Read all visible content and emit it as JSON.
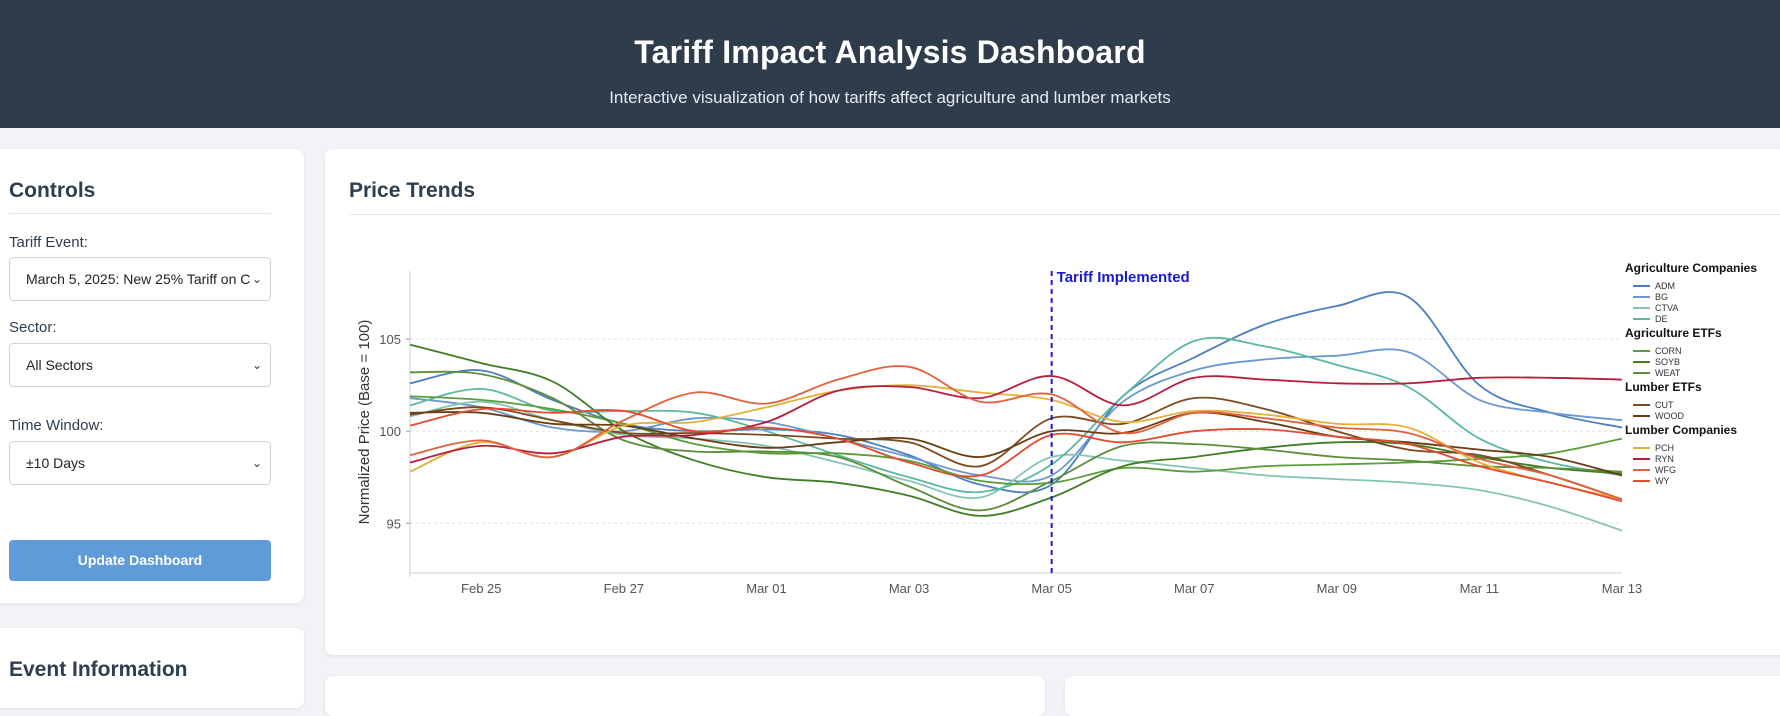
{
  "header": {
    "title": "Tariff Impact Analysis Dashboard",
    "subtitle": "Interactive visualization of how tariffs affect agriculture and lumber markets"
  },
  "controls": {
    "title": "Controls",
    "tariff_event_label": "Tariff Event:",
    "tariff_event_value": "March 5, 2025: New 25% Tariff on C",
    "sector_label": "Sector:",
    "sector_value": "All Sectors",
    "time_window_label": "Time Window:",
    "time_window_value": "±10 Days",
    "update_button": "Update Dashboard"
  },
  "event_info": {
    "title": "Event Information"
  },
  "price_trends": {
    "title": "Price Trends"
  },
  "colors": {
    "header_bg": "#2f3c4c",
    "button": "#5f9bd8",
    "tariff_line": "#1a1ad6"
  },
  "chart_data": {
    "type": "line",
    "title": "",
    "xlabel": "",
    "ylabel": "Normalized Price (Base = 100)",
    "x_ticks": [
      "Feb 25",
      "Feb 27",
      "Mar 01",
      "Mar 03",
      "Mar 05",
      "Mar 07",
      "Mar 09",
      "Mar 11",
      "Mar 13"
    ],
    "x_range": [
      "Feb 24",
      "Mar 13"
    ],
    "ylim": [
      92.3,
      108.7
    ],
    "y_ticks": [
      95,
      100,
      105
    ],
    "grid": "horizontal dashed",
    "annotation": {
      "x": "Mar 05",
      "label": "Tariff Implemented"
    },
    "legend_position": "right",
    "x": [
      "Feb 24",
      "Feb 25",
      "Feb 26",
      "Feb 27",
      "Feb 28",
      "Mar 01",
      "Mar 02",
      "Mar 03",
      "Mar 04",
      "Mar 05",
      "Mar 06",
      "Mar 07",
      "Mar 08",
      "Mar 09",
      "Mar 10",
      "Mar 11",
      "Mar 12",
      "Mar 13"
    ],
    "groups": [
      {
        "name": "Agriculture Companies",
        "series": [
          {
            "name": "ADM",
            "color": "#4a7fc1",
            "values": [
              102.6,
              103.3,
              101.7,
              100.4,
              100.0,
              100.1,
              99.8,
              98.7,
              97.1,
              97.1,
              101.9,
              104.0,
              105.8,
              106.8,
              107.3,
              102.5,
              101.0,
              100.2
            ]
          },
          {
            "name": "BG",
            "color": "#6b97d2",
            "values": [
              101.8,
              101.3,
              100.2,
              100.0,
              100.7,
              100.5,
              99.6,
              98.6,
              97.6,
              97.6,
              101.6,
              103.3,
              103.9,
              104.1,
              104.3,
              101.7,
              101.0,
              100.6
            ]
          },
          {
            "name": "CTVA",
            "color": "#86c4b5",
            "values": [
              100.8,
              101.6,
              100.6,
              99.8,
              99.6,
              99.2,
              98.3,
              97.3,
              96.4,
              98.6,
              98.4,
              98.0,
              97.6,
              97.4,
              97.2,
              96.8,
              95.9,
              94.6
            ]
          },
          {
            "name": "DE",
            "color": "#5cb89e",
            "values": [
              101.4,
              102.3,
              101.1,
              101.1,
              101.0,
              100.0,
              98.7,
              97.5,
              96.7,
              98.2,
              101.9,
              104.9,
              104.6,
              103.6,
              102.4,
              99.6,
              98.3,
              97.6
            ]
          }
        ]
      },
      {
        "name": "Agriculture ETFs",
        "series": [
          {
            "name": "CORN",
            "color": "#5a9e3a",
            "values": [
              101.9,
              101.7,
              101.2,
              100.4,
              99.3,
              98.8,
              98.8,
              98.4,
              97.3,
              97.2,
              98.0,
              97.8,
              98.1,
              98.2,
              98.3,
              98.5,
              98.8,
              99.6
            ]
          },
          {
            "name": "SOYB",
            "color": "#3f7f24",
            "values": [
              104.7,
              103.7,
              102.7,
              100.0,
              98.4,
              97.5,
              97.2,
              96.5,
              95.4,
              96.4,
              98.1,
              98.6,
              99.1,
              99.4,
              99.3,
              98.6,
              98.0,
              97.7
            ]
          },
          {
            "name": "WEAT",
            "color": "#5e8e3a",
            "values": [
              103.2,
              103.1,
              101.8,
              99.5,
              98.9,
              98.9,
              98.6,
              97.0,
              95.7,
              97.3,
              99.2,
              99.3,
              99.0,
              98.6,
              98.4,
              98.1,
              98.0,
              97.8
            ]
          }
        ]
      },
      {
        "name": "Lumber ETFs",
        "series": [
          {
            "name": "CUT",
            "color": "#7b4a1e",
            "values": [
              100.9,
              101.3,
              100.6,
              99.9,
              99.9,
              99.8,
              99.6,
              99.4,
              98.1,
              100.7,
              100.4,
              101.8,
              101.2,
              100.0,
              99.0,
              98.7,
              97.6,
              96.3
            ]
          },
          {
            "name": "WOOD",
            "color": "#6a3c13",
            "values": [
              101.0,
              101.0,
              100.4,
              100.3,
              99.6,
              99.1,
              99.4,
              99.6,
              98.6,
              100.0,
              99.9,
              101.0,
              100.5,
              99.7,
              99.4,
              99.0,
              98.6,
              97.6
            ]
          }
        ]
      },
      {
        "name": "Lumber Companies",
        "series": [
          {
            "name": "PCH",
            "color": "#e6b03a",
            "values": [
              97.8,
              99.4,
              98.6,
              100.3,
              100.5,
              101.3,
              102.2,
              102.5,
              102.1,
              101.7,
              100.5,
              101.1,
              100.9,
              100.4,
              100.2,
              98.3,
              97.2,
              96.3
            ]
          },
          {
            "name": "RYN",
            "color": "#b81e3c",
            "values": [
              98.3,
              99.2,
              98.8,
              99.7,
              99.8,
              100.5,
              102.2,
              102.4,
              101.8,
              103.0,
              101.4,
              102.9,
              102.8,
              102.6,
              102.6,
              102.9,
              102.9,
              102.8
            ]
          },
          {
            "name": "WFG",
            "color": "#e2613e",
            "values": [
              98.7,
              99.5,
              98.6,
              100.6,
              102.1,
              101.5,
              102.8,
              103.5,
              101.6,
              102.0,
              99.9,
              101.0,
              100.7,
              100.2,
              99.9,
              98.5,
              97.6,
              96.3
            ]
          },
          {
            "name": "WY",
            "color": "#e44a2e",
            "values": [
              100.3,
              101.2,
              101.0,
              101.1,
              100.0,
              100.2,
              99.6,
              98.3,
              97.6,
              99.8,
              99.4,
              100.0,
              100.1,
              99.7,
              99.3,
              98.1,
              97.2,
              96.2
            ]
          }
        ]
      }
    ]
  }
}
